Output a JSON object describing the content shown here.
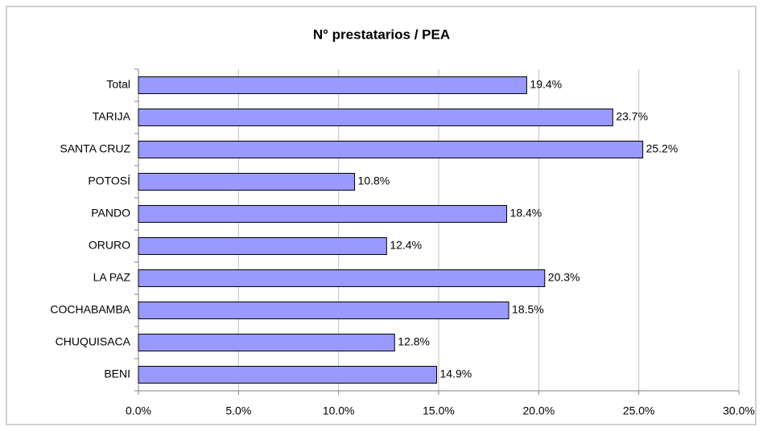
{
  "chart_data": {
    "type": "barh",
    "title": "N° prestatarios / PEA",
    "categories": [
      "Total",
      "TARIJA",
      "SANTA CRUZ",
      "POTOSÍ",
      "PANDO",
      "ORURO",
      "LA PAZ",
      "COCHABAMBA",
      "CHUQUISACA",
      "BENI"
    ],
    "values": [
      19.4,
      23.7,
      25.2,
      10.8,
      18.4,
      12.4,
      20.3,
      18.5,
      12.8,
      14.9
    ],
    "value_labels": [
      "19.4%",
      "23.7%",
      "25.2%",
      "10.8%",
      "18.4%",
      "12.4%",
      "20.3%",
      "18.5%",
      "12.8%",
      "14.9%"
    ],
    "color": "#9999ff",
    "xlim": [
      0,
      30
    ],
    "xticks": [
      {
        "value": 0,
        "label": "0.0%"
      },
      {
        "value": 5,
        "label": "5.0%"
      },
      {
        "value": 10,
        "label": "10.0%"
      },
      {
        "value": 15,
        "label": "15.0%"
      },
      {
        "value": 20,
        "label": "20.0%"
      },
      {
        "value": 25,
        "label": "25.0%"
      },
      {
        "value": 30,
        "label": "30.0%"
      }
    ],
    "grid": true
  }
}
